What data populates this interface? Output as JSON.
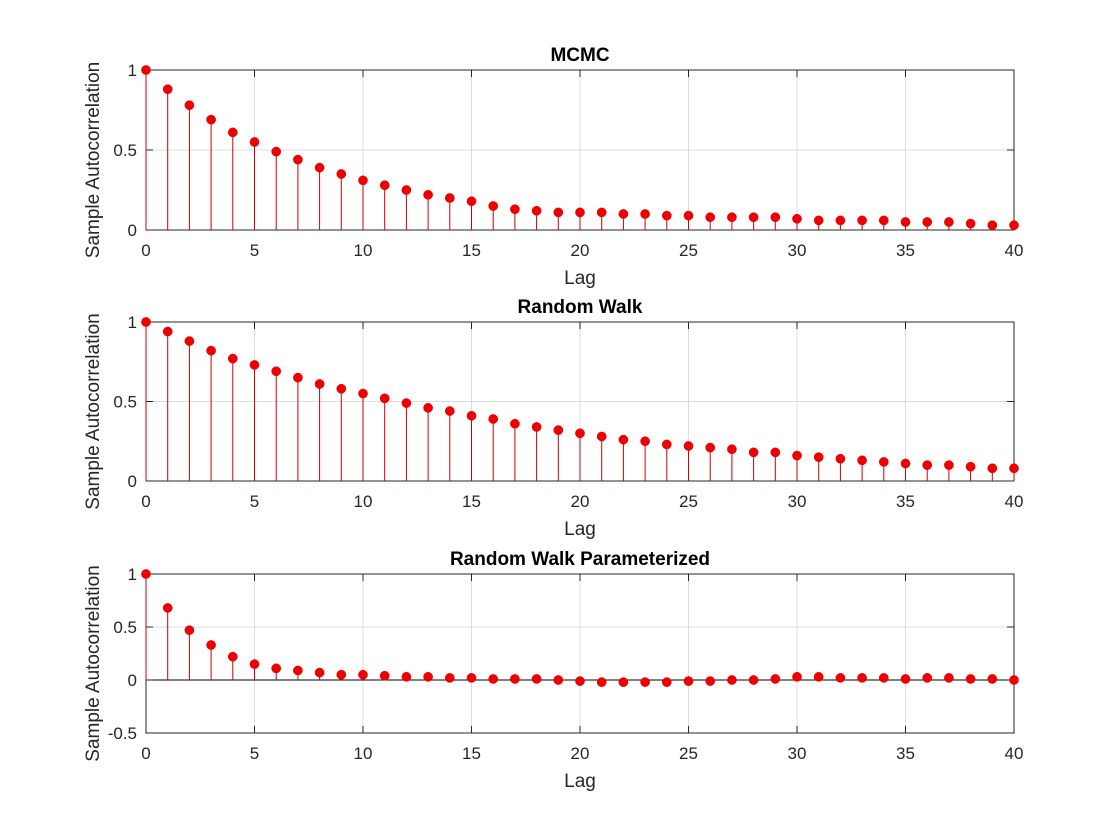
{
  "colors": {
    "stem": "#cc0000",
    "marker": "#ee0000",
    "axis": "#262626",
    "grid": "#dcdcdc",
    "zero_line": "#000000"
  },
  "chart_data": [
    {
      "type": "stem",
      "title": "MCMC",
      "xlabel": "Lag",
      "ylabel": "Sample Autocorrelation",
      "xlim": [
        0,
        40
      ],
      "ylim": [
        0,
        1
      ],
      "xticks": [
        "0",
        "5",
        "10",
        "15",
        "20",
        "25",
        "30",
        "35",
        "40"
      ],
      "yticks": [
        "0",
        "0.5",
        "1"
      ],
      "grid": true,
      "x": [
        0,
        1,
        2,
        3,
        4,
        5,
        6,
        7,
        8,
        9,
        10,
        11,
        12,
        13,
        14,
        15,
        16,
        17,
        18,
        19,
        20,
        21,
        22,
        23,
        24,
        25,
        26,
        27,
        28,
        29,
        30,
        31,
        32,
        33,
        34,
        35,
        36,
        37,
        38,
        39,
        40
      ],
      "values": [
        1.0,
        0.88,
        0.78,
        0.69,
        0.61,
        0.55,
        0.49,
        0.44,
        0.39,
        0.35,
        0.31,
        0.28,
        0.25,
        0.22,
        0.2,
        0.18,
        0.15,
        0.13,
        0.12,
        0.11,
        0.11,
        0.11,
        0.1,
        0.1,
        0.09,
        0.09,
        0.08,
        0.08,
        0.08,
        0.08,
        0.07,
        0.06,
        0.06,
        0.06,
        0.06,
        0.05,
        0.05,
        0.05,
        0.04,
        0.03,
        0.03
      ]
    },
    {
      "type": "stem",
      "title": "Random Walk",
      "xlabel": "Lag",
      "ylabel": "Sample Autocorrelation",
      "xlim": [
        0,
        40
      ],
      "ylim": [
        0,
        1
      ],
      "xticks": [
        "0",
        "5",
        "10",
        "15",
        "20",
        "25",
        "30",
        "35",
        "40"
      ],
      "yticks": [
        "0",
        "0.5",
        "1"
      ],
      "grid": true,
      "x": [
        0,
        1,
        2,
        3,
        4,
        5,
        6,
        7,
        8,
        9,
        10,
        11,
        12,
        13,
        14,
        15,
        16,
        17,
        18,
        19,
        20,
        21,
        22,
        23,
        24,
        25,
        26,
        27,
        28,
        29,
        30,
        31,
        32,
        33,
        34,
        35,
        36,
        37,
        38,
        39,
        40
      ],
      "values": [
        1.0,
        0.94,
        0.88,
        0.82,
        0.77,
        0.73,
        0.69,
        0.65,
        0.61,
        0.58,
        0.55,
        0.52,
        0.49,
        0.46,
        0.44,
        0.41,
        0.39,
        0.36,
        0.34,
        0.32,
        0.3,
        0.28,
        0.26,
        0.25,
        0.23,
        0.22,
        0.21,
        0.2,
        0.18,
        0.18,
        0.16,
        0.15,
        0.14,
        0.13,
        0.12,
        0.11,
        0.1,
        0.1,
        0.09,
        0.08,
        0.08
      ]
    },
    {
      "type": "stem",
      "title": "Random Walk Parameterized",
      "xlabel": "Lag",
      "ylabel": "Sample Autocorrelation",
      "xlim": [
        0,
        40
      ],
      "ylim": [
        -0.5,
        1
      ],
      "xticks": [
        "0",
        "5",
        "10",
        "15",
        "20",
        "25",
        "30",
        "35",
        "40"
      ],
      "yticks": [
        "-0.5",
        "0",
        "0.5",
        "1"
      ],
      "grid": true,
      "x": [
        0,
        1,
        2,
        3,
        4,
        5,
        6,
        7,
        8,
        9,
        10,
        11,
        12,
        13,
        14,
        15,
        16,
        17,
        18,
        19,
        20,
        21,
        22,
        23,
        24,
        25,
        26,
        27,
        28,
        29,
        30,
        31,
        32,
        33,
        34,
        35,
        36,
        37,
        38,
        39,
        40
      ],
      "values": [
        1.0,
        0.68,
        0.47,
        0.33,
        0.22,
        0.15,
        0.11,
        0.09,
        0.07,
        0.05,
        0.05,
        0.04,
        0.03,
        0.03,
        0.02,
        0.02,
        0.01,
        0.01,
        0.01,
        0.0,
        -0.01,
        -0.02,
        -0.02,
        -0.02,
        -0.02,
        -0.01,
        -0.01,
        0.0,
        0.0,
        0.01,
        0.03,
        0.03,
        0.02,
        0.02,
        0.02,
        0.01,
        0.02,
        0.02,
        0.01,
        0.01,
        0.0
      ]
    }
  ]
}
